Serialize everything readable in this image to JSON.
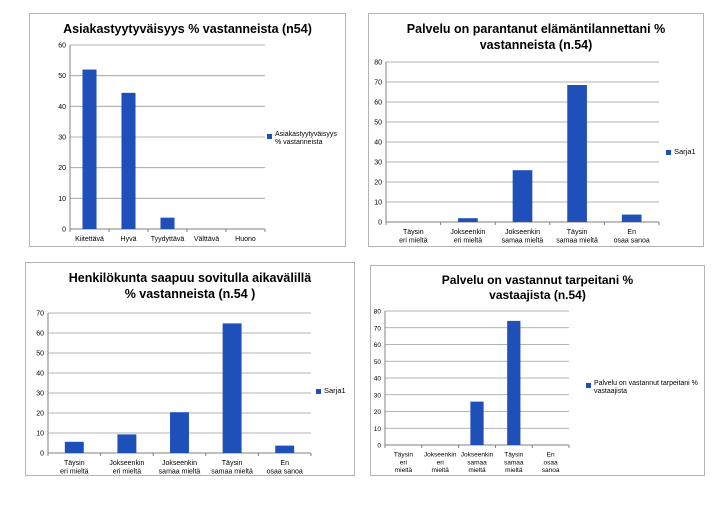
{
  "colors": {
    "bar": "#1f4fb8",
    "axis": "#808080",
    "grid": "#9a9a9a",
    "text": "#000000"
  },
  "chart_data": [
    {
      "type": "bar",
      "title": "Asiakastyytyväisyys % vastanneista (n54)",
      "categories": [
        "Kiitettävä",
        "Hyvä",
        "Tyydyttävä",
        "Välttävä",
        "Huono"
      ],
      "series": [
        {
          "name": "Asiakastyytyväisyys % vastanneista",
          "values": [
            52,
            44.4,
            3.7,
            0,
            0
          ]
        }
      ],
      "ylim": [
        0,
        60
      ],
      "yticks": [
        0,
        10,
        20,
        30,
        40,
        50,
        60
      ],
      "grid": true,
      "legend": "right"
    },
    {
      "type": "bar",
      "title": "Palvelu on parantanut elämäntilannettani % vastanneista (n.54)",
      "categories": [
        "Täysin eri mieltä",
        "Jokseenkin eri mieltä",
        "Jokseenkin samaa mieltä",
        "Täysin samaa mieltä",
        "En osaa sanoa"
      ],
      "series": [
        {
          "name": "Sarja1",
          "values": [
            0,
            1.9,
            25.9,
            68.5,
            3.7
          ]
        }
      ],
      "ylim": [
        0,
        80
      ],
      "yticks": [
        0,
        10,
        20,
        30,
        40,
        50,
        60,
        70,
        80
      ],
      "grid": true,
      "legend": "right"
    },
    {
      "type": "bar",
      "title": "Henkilökunta saapuu sovitulla aikavälillä % vastanneista (n.54 )",
      "categories": [
        "Täysin eri mieltä",
        "Jokseenkin eri mieltä",
        "Jokseenkin samaa mieltä",
        "Täysin samaa mieltä",
        "En osaa sanoa"
      ],
      "series": [
        {
          "name": "Sarja1",
          "values": [
            5.6,
            9.3,
            20.4,
            64.8,
            3.7
          ]
        }
      ],
      "ylim": [
        0,
        70
      ],
      "yticks": [
        0,
        10,
        20,
        30,
        40,
        50,
        60,
        70
      ],
      "grid": true,
      "legend": "right"
    },
    {
      "type": "bar",
      "title": "Palvelu on vastannut tarpeitani % vastaajista (n.54)",
      "categories": [
        "Täysin eri mieltä",
        "Jokseenkin eri mieltä",
        "Jokseenkin samaa mieltä",
        "Täysin samaa mieltä",
        "En osaa sanoa"
      ],
      "series": [
        {
          "name": "Palvelu on vastannut tarpeitani % vastaajista",
          "values": [
            0,
            0,
            25.9,
            74.1,
            0
          ]
        }
      ],
      "ylim": [
        0,
        80
      ],
      "yticks": [
        0,
        10,
        20,
        30,
        40,
        50,
        60,
        70,
        80
      ],
      "grid": true,
      "legend": "right"
    }
  ]
}
